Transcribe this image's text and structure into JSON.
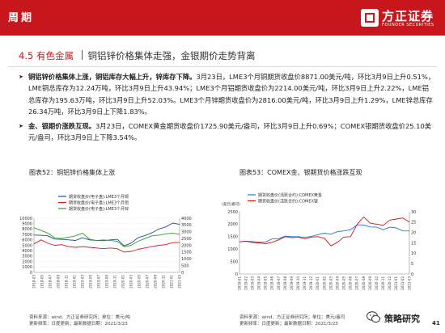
{
  "header": {
    "section": "周期",
    "logo_cn": "方正证券",
    "logo_en": "FOUNDER SECURITIES",
    "accent": "#c8161d"
  },
  "subhead": {
    "number": "4.5 有色金属",
    "title": "铜铝锌价格集体走强，金银期价走势背离"
  },
  "bullets": [
    {
      "lead": "铜铝锌价格集体上涨，铜铝库存大幅上升，锌库存下降。",
      "body": "3月23日，LME3个月铜期货收盘价8871.00美元/吨，环比3月9日上升0.51%，LME铜总库存为12.24万吨，环比3月9日上升43.94%；LME3个月铝期货收盘价为2214.00美元/吨，环比3月9日上升2.22%，LME铝总库存为195.63万吨，环比3月9日上升52.03%。LME3个月锌期货收盘价为2816.00美元/吨，环比3月9日上升1.29%，LME锌总库存26.34万吨，环比3月9日上下降1.83%。"
    },
    {
      "lead": "金、银期价涨跌互现。",
      "body": "3月23日，COMEX黄金期货收盘价1725.90美元/盎司，环比3月9日上升0.69%；COMEX银期货收盘价25.10美元/盎司，环比3月9日上下降3.54%。"
    }
  ],
  "charts": {
    "left_title": "图表52：铜铝锌价格集体上涨",
    "right_title": "图表53：COMEX金、银期货价格涨跌互现"
  },
  "chart_data": [
    {
      "type": "line",
      "legend": [
        "期货收盘价(电子盘):LME3个月铜",
        "期货收盘价(电子盘):LME3个月铝",
        "期货收盘价(电子盘):LME3个月锌"
      ],
      "colors": [
        "#1f4e9c",
        "#d7191c",
        "#2ca02c"
      ],
      "left_ticks": [
        "10000",
        "9000",
        "8000",
        "7000",
        "6000",
        "5000",
        "4000",
        "3000",
        "2000",
        "1000",
        "0"
      ],
      "right_ticks": [
        "4000",
        "3500",
        "3000",
        "2500",
        "2000",
        "1500",
        "1000",
        "500",
        "0"
      ],
      "x_ticks": [
        "2018-03",
        "2018-05",
        "2018-07",
        "2018-09",
        "2018-11",
        "2019-01",
        "2019-03",
        "2019-05",
        "2019-07",
        "2019-09",
        "2019-11",
        "2020-01",
        "2020-03",
        "2020-05",
        "2020-07",
        "2020-09",
        "2020-11",
        "2021-01",
        "2021-03"
      ],
      "left_range": [
        0,
        10000
      ],
      "right_range": [
        0,
        4000
      ],
      "series": [
        {
          "name": "期货收盘价(电子盘):LME3个月铜",
          "axis": "left",
          "values": [
            6900,
            6850,
            6750,
            6150,
            6100,
            6000,
            5900,
            6400,
            6000,
            5900,
            5850,
            6000,
            6100,
            4900,
            5400,
            6400,
            6800,
            7300,
            8000,
            8400,
            9100,
            8871
          ]
        },
        {
          "name": "期货收盘价(电子盘):LME3个月铝",
          "axis": "right",
          "values": [
            2100,
            2400,
            2150,
            2000,
            2050,
            1900,
            1850,
            1900,
            1850,
            1800,
            1750,
            1800,
            1750,
            1500,
            1550,
            1700,
            1800,
            1900,
            2000,
            2050,
            2200,
            2214
          ]
        },
        {
          "name": "期货收盘价(电子盘):LME3个月锌",
          "axis": "right",
          "values": [
            3300,
            3100,
            2900,
            2550,
            2500,
            2600,
            2700,
            2900,
            2450,
            2350,
            2400,
            2350,
            2300,
            1900,
            2000,
            2300,
            2500,
            2700,
            2750,
            2850,
            2900,
            2816
          ]
        }
      ]
    },
    {
      "type": "line",
      "unit_label": "(美元/盎司)",
      "legend": [
        "期货收盘价(活跃合约):COMEX黄金",
        "期货收盘价(活跃合约):COMEX银"
      ],
      "colors": [
        "#1f78d1",
        "#c8161d"
      ],
      "left_ticks": [
        "2500",
        "2000",
        "1500",
        "1000",
        "500",
        "0"
      ],
      "right_ticks": [
        "30",
        "25",
        "20",
        "15",
        "10",
        "5",
        "0"
      ],
      "x_ticks": [
        "2019-01",
        "2019-02",
        "2019-03",
        "2019-04",
        "2019-05",
        "2019-06",
        "2019-07",
        "2019-08",
        "2019-09",
        "2019-10",
        "2019-11",
        "2019-12",
        "2020-01",
        "2020-02",
        "2020-03",
        "2020-04",
        "2020-05",
        "2020-06",
        "2020-07",
        "2020-08",
        "2020-09",
        "2020-10",
        "2020-11",
        "2020-12",
        "2021-01",
        "2021-02",
        "2021-03"
      ],
      "left_range": [
        0,
        2500
      ],
      "right_range": [
        0,
        30
      ],
      "series": [
        {
          "name": "期货收盘价(活跃合约):COMEX黄金",
          "axis": "left",
          "values": [
            1290,
            1320,
            1300,
            1280,
            1290,
            1410,
            1420,
            1520,
            1500,
            1500,
            1470,
            1510,
            1580,
            1640,
            1600,
            1700,
            1730,
            1780,
            1970,
            1970,
            1890,
            1880,
            1780,
            1880,
            1850,
            1730,
            1726
          ]
        },
        {
          "name": "期货收盘价(活跃合约):COMEX银",
          "axis": "right",
          "values": [
            15.5,
            15.8,
            15.2,
            15.0,
            14.6,
            15.3,
            16.5,
            18.0,
            17.5,
            17.8,
            17.0,
            17.8,
            18.0,
            17.2,
            13.5,
            15.3,
            17.8,
            18.0,
            24.0,
            27.5,
            24.5,
            24.0,
            23.5,
            26.0,
            26.5,
            27.0,
            25.1
          ]
        }
      ]
    }
  ],
  "footers": {
    "left": [
      "资料来源：wind、方正证券研究所；单位：美元/吨",
      "更新频率：日度更新；最新数据日期：2021/3/23"
    ],
    "right": [
      "资料来源：wind、方正证券研究所；单位：美元/盎司",
      "更新频率：日度更新；最新数据日期：2021/3/23"
    ]
  },
  "watermark": "策略研究",
  "page_number": "41"
}
